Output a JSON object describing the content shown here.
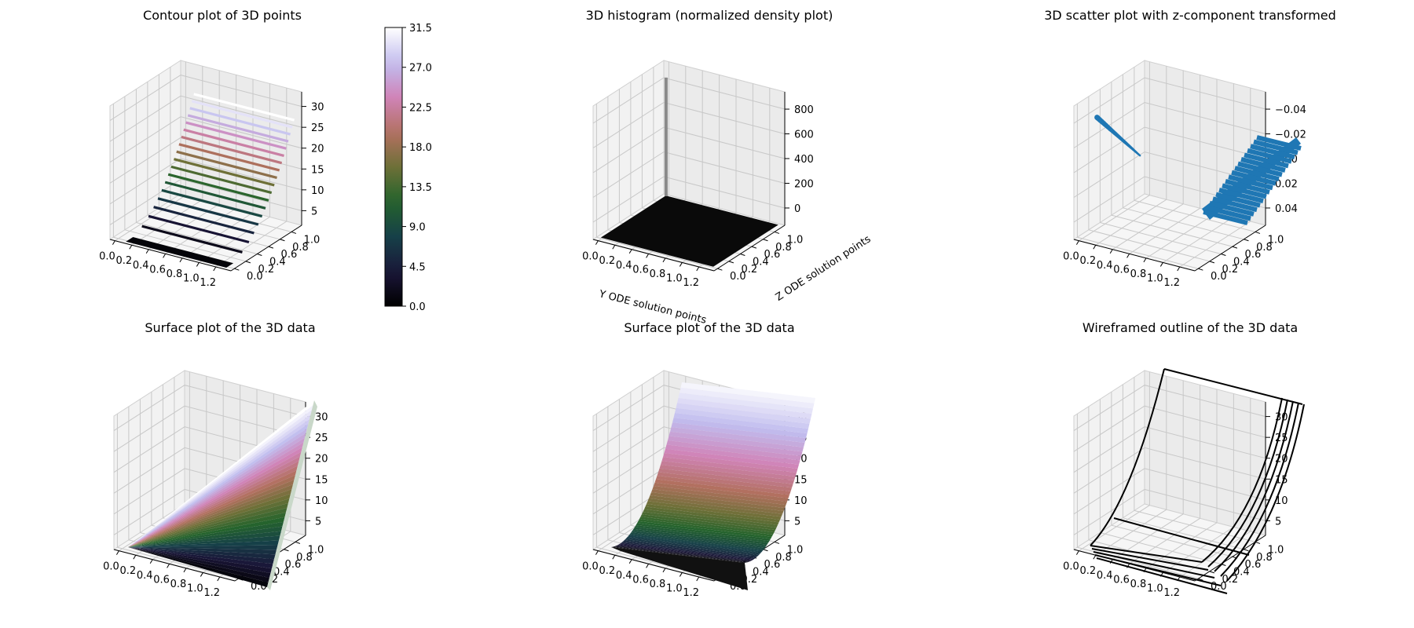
{
  "chart_data": [
    {
      "id": "contour",
      "type": "contour3d",
      "title": "Contour plot of 3D points",
      "xticks": [
        "0.0",
        "0.2",
        "0.4",
        "0.6",
        "0.8",
        "1.0",
        "1.2"
      ],
      "yticks": [
        "0.0",
        "0.2",
        "0.4",
        "0.6",
        "0.8",
        "1.0"
      ],
      "zticks": [
        "5",
        "10",
        "15",
        "20",
        "25",
        "30"
      ],
      "xlim": [
        0,
        1.2
      ],
      "ylim": [
        0,
        1.0
      ],
      "zlim": [
        0,
        33
      ],
      "contour_levels": [
        0,
        1.75,
        3.5,
        5.25,
        7,
        8.75,
        10.5,
        12.25,
        14,
        15.75,
        17.5,
        19.25,
        21,
        22.75,
        24.5,
        26.25,
        28,
        29.75,
        31.5
      ],
      "colorbar": {
        "ticks": [
          "0.0",
          "4.5",
          "9.0",
          "13.5",
          "18.0",
          "22.5",
          "27.0",
          "31.5"
        ],
        "range": [
          0,
          31.5
        ],
        "colormap": "cubehelix"
      }
    },
    {
      "id": "histogram",
      "type": "bar3d",
      "title": "3D histogram (normalized density plot)",
      "xlabel": "Y ODE solution points",
      "ylabel": "Z ODE solution points",
      "xticks": [
        "0.0",
        "0.2",
        "0.4",
        "0.6",
        "0.8",
        "1.0",
        "1.2"
      ],
      "yticks": [
        "0.0",
        "0.2",
        "0.4",
        "0.6",
        "0.8",
        "1.0"
      ],
      "zticks": [
        "0",
        "200",
        "400",
        "600",
        "800"
      ],
      "xlim": [
        0,
        1.2
      ],
      "ylim": [
        0,
        1.0
      ],
      "zlim": [
        0,
        900
      ],
      "spike": {
        "x": 0.0,
        "y": 1.0,
        "z": 800
      }
    },
    {
      "id": "scatter",
      "type": "scatter3d",
      "title": "3D scatter plot with z-component transformed",
      "xticks": [
        "0.0",
        "0.2",
        "0.4",
        "0.6",
        "0.8",
        "1.0",
        "1.2"
      ],
      "yticks": [
        "0.0",
        "0.2",
        "0.4",
        "0.6",
        "0.8",
        "1.0"
      ],
      "zticks": [
        "0.04",
        "0.02",
        "0.00",
        "−0.02",
        "−0.04"
      ],
      "xlim": [
        0,
        1.2
      ],
      "ylim": [
        0,
        1.0
      ],
      "zlim": [
        -0.05,
        0.05
      ],
      "color": "#1f77b4"
    },
    {
      "id": "surface1",
      "type": "surface3d",
      "title": "Surface plot of the 3D data",
      "xticks": [
        "0.0",
        "0.2",
        "0.4",
        "0.6",
        "0.8",
        "1.0",
        "1.2"
      ],
      "yticks": [
        "0.0",
        "0.2",
        "0.4",
        "0.6",
        "0.8",
        "1.0"
      ],
      "zticks": [
        "5",
        "10",
        "15",
        "20",
        "25",
        "30"
      ],
      "xlim": [
        0,
        1.2
      ],
      "ylim": [
        0,
        1.0
      ],
      "zlim": [
        0,
        33
      ],
      "colormap": "cubehelix"
    },
    {
      "id": "surface2",
      "type": "surface3d",
      "title": "Surface plot of the 3D data",
      "xticks": [
        "0.0",
        "0.2",
        "0.4",
        "0.6",
        "0.8",
        "1.0",
        "1.2"
      ],
      "yticks": [
        "0.0",
        "0.2",
        "0.4",
        "0.6",
        "0.8",
        "1.0"
      ],
      "zticks": [
        "5",
        "10",
        "15",
        "20",
        "25",
        "30"
      ],
      "xlim": [
        0,
        1.2
      ],
      "ylim": [
        0,
        1.0
      ],
      "zlim": [
        0,
        33
      ],
      "colormap": "cubehelix"
    },
    {
      "id": "wireframe",
      "type": "wireframe3d",
      "title": "Wireframed outline of the 3D data",
      "xticks": [
        "0.0",
        "0.2",
        "0.4",
        "0.6",
        "0.8",
        "1.0",
        "1.2"
      ],
      "yticks": [
        "0.0",
        "0.2",
        "0.4",
        "0.6",
        "0.8",
        "1.0"
      ],
      "zticks": [
        "5",
        "10",
        "15",
        "20",
        "25",
        "30"
      ],
      "xlim": [
        0,
        1.2
      ],
      "ylim": [
        0,
        1.0
      ],
      "zlim": [
        0,
        33
      ]
    }
  ]
}
